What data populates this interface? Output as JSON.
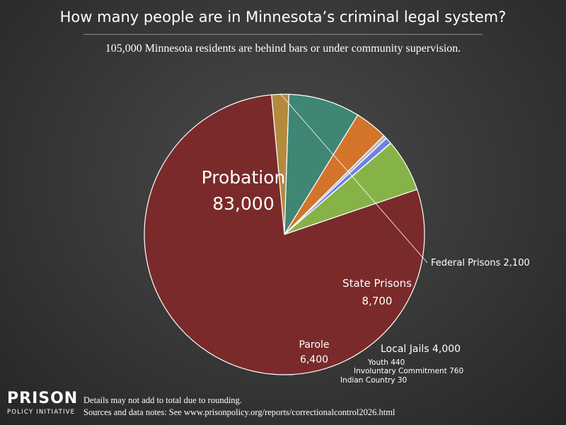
{
  "header": {
    "title": "How many people are in Minnesota’s criminal legal system?",
    "subtitle": "105,000 Minnesota residents are behind bars or under community supervision."
  },
  "chart_data": {
    "type": "pie",
    "title": "How many people are in Minnesota’s criminal legal system?",
    "subtitle": "105,000 Minnesota residents are behind bars or under community supervision.",
    "total": 105000,
    "slices": [
      {
        "name": "Federal Prisons",
        "value": 2100,
        "value_label": "2,100",
        "color": "#b48a3e"
      },
      {
        "name": "State Prisons",
        "value": 8700,
        "value_label": "8,700",
        "color": "#3f8674"
      },
      {
        "name": "Local Jails",
        "value": 4000,
        "value_label": "4,000",
        "color": "#d4742a"
      },
      {
        "name": "Youth",
        "value": 440,
        "value_label": "440",
        "color": "#b9b9b9"
      },
      {
        "name": "Involuntary Commitment",
        "value": 760,
        "value_label": "760",
        "color": "#6f80e6"
      },
      {
        "name": "Indian Country",
        "value": 30,
        "value_label": "30",
        "color": "#8a6fb3"
      },
      {
        "name": "Parole",
        "value": 6400,
        "value_label": "6,400",
        "color": "#86b347"
      },
      {
        "name": "Probation",
        "value": 83000,
        "value_label": "83,000",
        "color": "#7a2a2a"
      }
    ]
  },
  "footer": {
    "logo_top": "PRISON",
    "logo_bottom": "POLICY INITIATIVE",
    "note_1": "Details may not add to total due to rounding.",
    "note_2": "Sources and data notes: See www.prisonpolicy.org/reports/correctionalcontrol2026.html"
  }
}
